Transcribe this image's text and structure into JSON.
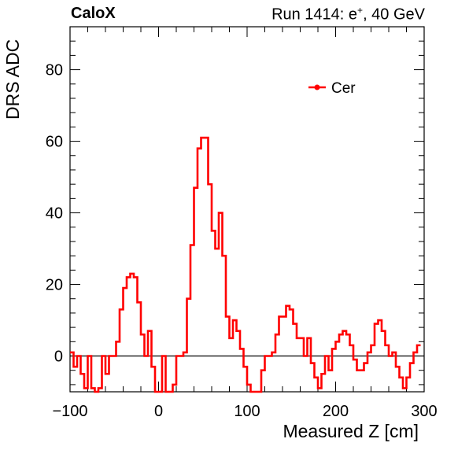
{
  "header": {
    "experiment": "CaloX",
    "run_prefix": "Run 1414: e",
    "run_sup": "+",
    "run_suffix": ", 40 GeV"
  },
  "chart_data": {
    "type": "line",
    "style": "step-histogram",
    "xlabel": "Measured Z [cm]",
    "ylabel": "DRS ADC",
    "xlim": [
      -100,
      300
    ],
    "ylim": [
      -10,
      92
    ],
    "xticks": [
      -100,
      0,
      100,
      200,
      300
    ],
    "yticks": [
      0,
      20,
      40,
      60,
      80
    ],
    "x_tick_labels": [
      "−100",
      "0",
      "100",
      "200",
      "300"
    ],
    "y_tick_labels": [
      "0",
      "20",
      "40",
      "60",
      "80"
    ],
    "legend_position": "top-right",
    "zero_line": true,
    "series": [
      {
        "name": "Cer",
        "color": "#ff0000",
        "bin_width": 4,
        "x_start": -100,
        "values": [
          1,
          -3,
          0,
          -5,
          -9,
          0,
          -9,
          -10,
          -9,
          0,
          -5,
          0,
          0,
          4,
          13,
          19,
          22,
          23,
          22,
          15,
          6,
          0,
          7,
          -3,
          -10,
          -10,
          0,
          -10,
          -10,
          -8,
          0,
          0,
          1,
          16,
          31,
          47,
          58,
          61,
          61,
          48,
          35,
          30,
          40,
          28,
          11,
          5,
          10,
          7,
          2,
          -3,
          -8,
          -10,
          -10,
          -10,
          -4,
          0,
          0,
          1,
          6,
          11,
          11,
          14,
          13,
          9,
          5,
          5,
          0,
          5,
          -2,
          -6,
          -9,
          -5,
          0,
          -4,
          2,
          4,
          6,
          7,
          6,
          3,
          -1,
          -4,
          -4,
          -2,
          1,
          3,
          9,
          10,
          7,
          3,
          0,
          1,
          -3,
          -6,
          -9,
          -6,
          -2,
          1,
          3
        ]
      }
    ]
  }
}
